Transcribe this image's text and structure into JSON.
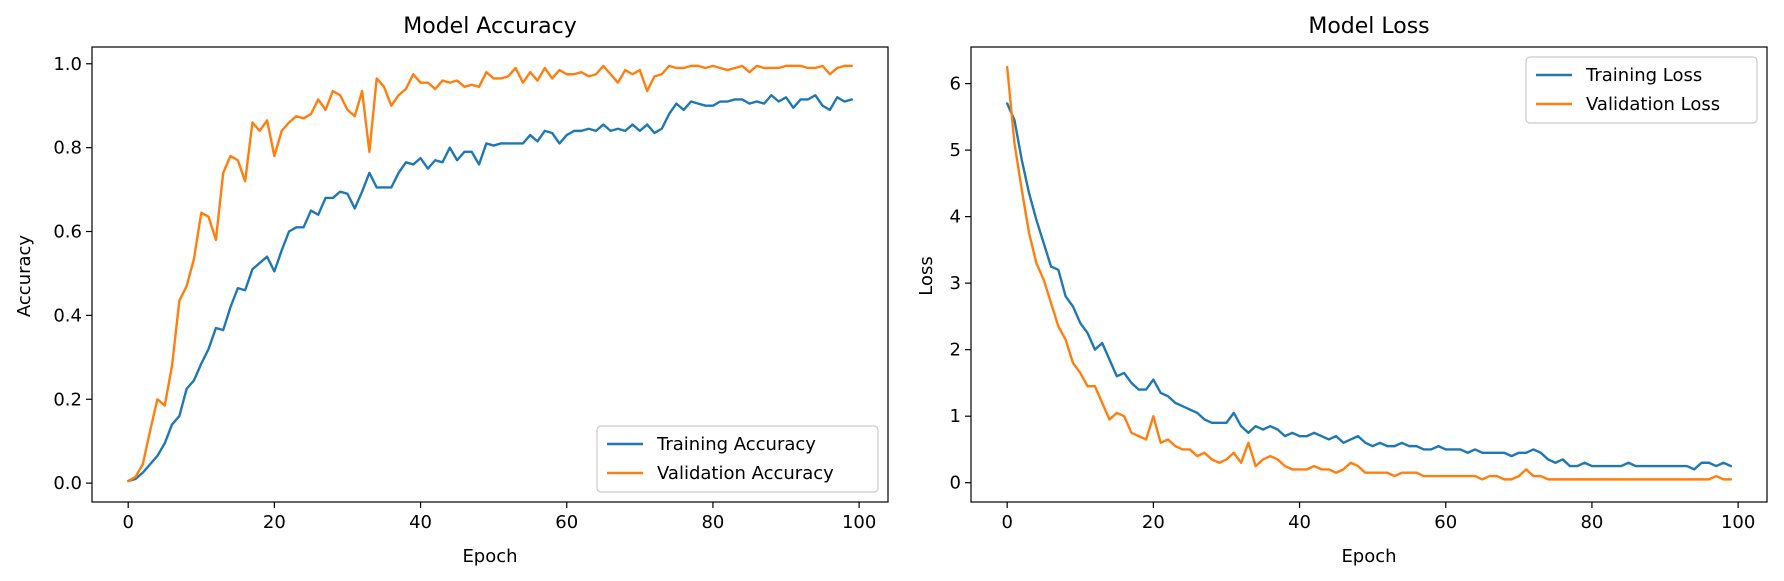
{
  "colors": {
    "training": "#1f77b4",
    "validation": "#ff7f0e"
  },
  "chart_data": [
    {
      "type": "line",
      "title": "Model Accuracy",
      "xlabel": "Epoch",
      "ylabel": "Accuracy",
      "xlim": [
        -4.95,
        103.95
      ],
      "ylim": [
        -0.045,
        1.04
      ],
      "xticks": [
        0,
        20,
        40,
        60,
        80,
        100
      ],
      "xtick_labels": [
        "0",
        "20",
        "40",
        "60",
        "80",
        "100"
      ],
      "yticks": [
        0.0,
        0.2,
        0.4,
        0.6,
        0.8,
        1.0
      ],
      "ytick_labels": [
        "0.0",
        "0.2",
        "0.4",
        "0.6",
        "0.8",
        "1.0"
      ],
      "legend_position": "lower-right",
      "grid": false,
      "series": [
        {
          "name": "Training Accuracy",
          "color_key": "training",
          "x_start": 0,
          "values": [
            0.005,
            0.01,
            0.025,
            0.045,
            0.065,
            0.095,
            0.14,
            0.16,
            0.225,
            0.245,
            0.285,
            0.32,
            0.37,
            0.365,
            0.42,
            0.465,
            0.46,
            0.51,
            0.525,
            0.54,
            0.505,
            0.555,
            0.6,
            0.61,
            0.61,
            0.65,
            0.64,
            0.68,
            0.68,
            0.695,
            0.69,
            0.655,
            0.695,
            0.74,
            0.705,
            0.705,
            0.705,
            0.74,
            0.765,
            0.76,
            0.775,
            0.75,
            0.77,
            0.765,
            0.8,
            0.77,
            0.79,
            0.79,
            0.76,
            0.81,
            0.805,
            0.81,
            0.81,
            0.81,
            0.81,
            0.83,
            0.815,
            0.84,
            0.835,
            0.81,
            0.83,
            0.84,
            0.84,
            0.845,
            0.84,
            0.855,
            0.84,
            0.845,
            0.84,
            0.855,
            0.84,
            0.855,
            0.835,
            0.845,
            0.88,
            0.905,
            0.89,
            0.91,
            0.905,
            0.9,
            0.9,
            0.91,
            0.91,
            0.915,
            0.915,
            0.905,
            0.91,
            0.905,
            0.925,
            0.91,
            0.92,
            0.895,
            0.915,
            0.915,
            0.925,
            0.9,
            0.89,
            0.92,
            0.91,
            0.915
          ]
        },
        {
          "name": "Validation Accuracy",
          "color_key": "validation",
          "x_start": 0,
          "values": [
            0.005,
            0.015,
            0.045,
            0.125,
            0.2,
            0.185,
            0.28,
            0.435,
            0.47,
            0.535,
            0.645,
            0.635,
            0.58,
            0.74,
            0.78,
            0.77,
            0.72,
            0.86,
            0.84,
            0.865,
            0.78,
            0.84,
            0.86,
            0.875,
            0.87,
            0.88,
            0.915,
            0.89,
            0.935,
            0.925,
            0.89,
            0.875,
            0.935,
            0.79,
            0.965,
            0.945,
            0.9,
            0.925,
            0.94,
            0.975,
            0.955,
            0.955,
            0.94,
            0.96,
            0.955,
            0.96,
            0.945,
            0.95,
            0.945,
            0.98,
            0.965,
            0.965,
            0.97,
            0.99,
            0.955,
            0.98,
            0.96,
            0.99,
            0.965,
            0.985,
            0.975,
            0.975,
            0.98,
            0.97,
            0.975,
            0.995,
            0.975,
            0.955,
            0.985,
            0.975,
            0.985,
            0.935,
            0.97,
            0.975,
            0.995,
            0.99,
            0.99,
            0.995,
            0.995,
            0.99,
            0.995,
            0.99,
            0.985,
            0.99,
            0.995,
            0.98,
            0.995,
            0.99,
            0.99,
            0.99,
            0.995,
            0.995,
            0.995,
            0.99,
            0.99,
            0.995,
            0.975,
            0.99,
            0.995,
            0.995
          ]
        }
      ]
    },
    {
      "type": "line",
      "title": "Model Loss",
      "xlabel": "Epoch",
      "ylabel": "Loss",
      "xlim": [
        -4.95,
        103.95
      ],
      "ylim": [
        -0.29,
        6.55
      ],
      "xticks": [
        0,
        20,
        40,
        60,
        80,
        100
      ],
      "xtick_labels": [
        "0",
        "20",
        "40",
        "60",
        "80",
        "100"
      ],
      "yticks": [
        0,
        1,
        2,
        3,
        4,
        5,
        6
      ],
      "ytick_labels": [
        "0",
        "1",
        "2",
        "3",
        "4",
        "5",
        "6"
      ],
      "legend_position": "top-right",
      "grid": false,
      "series": [
        {
          "name": "Training Loss",
          "color_key": "training",
          "x_start": 0,
          "values": [
            5.7,
            5.45,
            4.85,
            4.35,
            3.95,
            3.6,
            3.25,
            3.2,
            2.8,
            2.65,
            2.4,
            2.25,
            2.0,
            2.1,
            1.85,
            1.6,
            1.65,
            1.5,
            1.4,
            1.4,
            1.55,
            1.35,
            1.3,
            1.2,
            1.15,
            1.1,
            1.05,
            0.95,
            0.9,
            0.9,
            0.9,
            1.05,
            0.85,
            0.75,
            0.85,
            0.8,
            0.85,
            0.8,
            0.7,
            0.75,
            0.7,
            0.7,
            0.75,
            0.7,
            0.65,
            0.7,
            0.6,
            0.65,
            0.7,
            0.6,
            0.55,
            0.6,
            0.55,
            0.55,
            0.6,
            0.55,
            0.55,
            0.5,
            0.5,
            0.55,
            0.5,
            0.5,
            0.5,
            0.45,
            0.5,
            0.45,
            0.45,
            0.45,
            0.45,
            0.4,
            0.45,
            0.45,
            0.5,
            0.45,
            0.35,
            0.3,
            0.35,
            0.25,
            0.25,
            0.3,
            0.25,
            0.25,
            0.25,
            0.25,
            0.25,
            0.3,
            0.25,
            0.25,
            0.25,
            0.25,
            0.25,
            0.25,
            0.25,
            0.25,
            0.2,
            0.3,
            0.3,
            0.25,
            0.3,
            0.25
          ]
        },
        {
          "name": "Validation Loss",
          "color_key": "validation",
          "x_start": 0,
          "values": [
            6.25,
            5.1,
            4.4,
            3.75,
            3.3,
            3.05,
            2.7,
            2.35,
            2.15,
            1.8,
            1.65,
            1.45,
            1.45,
            1.2,
            0.95,
            1.05,
            1.0,
            0.75,
            0.7,
            0.65,
            1.0,
            0.6,
            0.65,
            0.55,
            0.5,
            0.5,
            0.4,
            0.45,
            0.35,
            0.3,
            0.35,
            0.45,
            0.3,
            0.6,
            0.25,
            0.35,
            0.4,
            0.35,
            0.25,
            0.2,
            0.2,
            0.2,
            0.25,
            0.2,
            0.2,
            0.15,
            0.2,
            0.3,
            0.25,
            0.15,
            0.15,
            0.15,
            0.15,
            0.1,
            0.15,
            0.15,
            0.15,
            0.1,
            0.1,
            0.1,
            0.1,
            0.1,
            0.1,
            0.1,
            0.1,
            0.05,
            0.1,
            0.1,
            0.05,
            0.05,
            0.1,
            0.2,
            0.1,
            0.1,
            0.05,
            0.05,
            0.05,
            0.05,
            0.05,
            0.05,
            0.05,
            0.05,
            0.05,
            0.05,
            0.05,
            0.05,
            0.05,
            0.05,
            0.05,
            0.05,
            0.05,
            0.05,
            0.05,
            0.05,
            0.05,
            0.05,
            0.05,
            0.1,
            0.05,
            0.05
          ]
        }
      ]
    }
  ]
}
